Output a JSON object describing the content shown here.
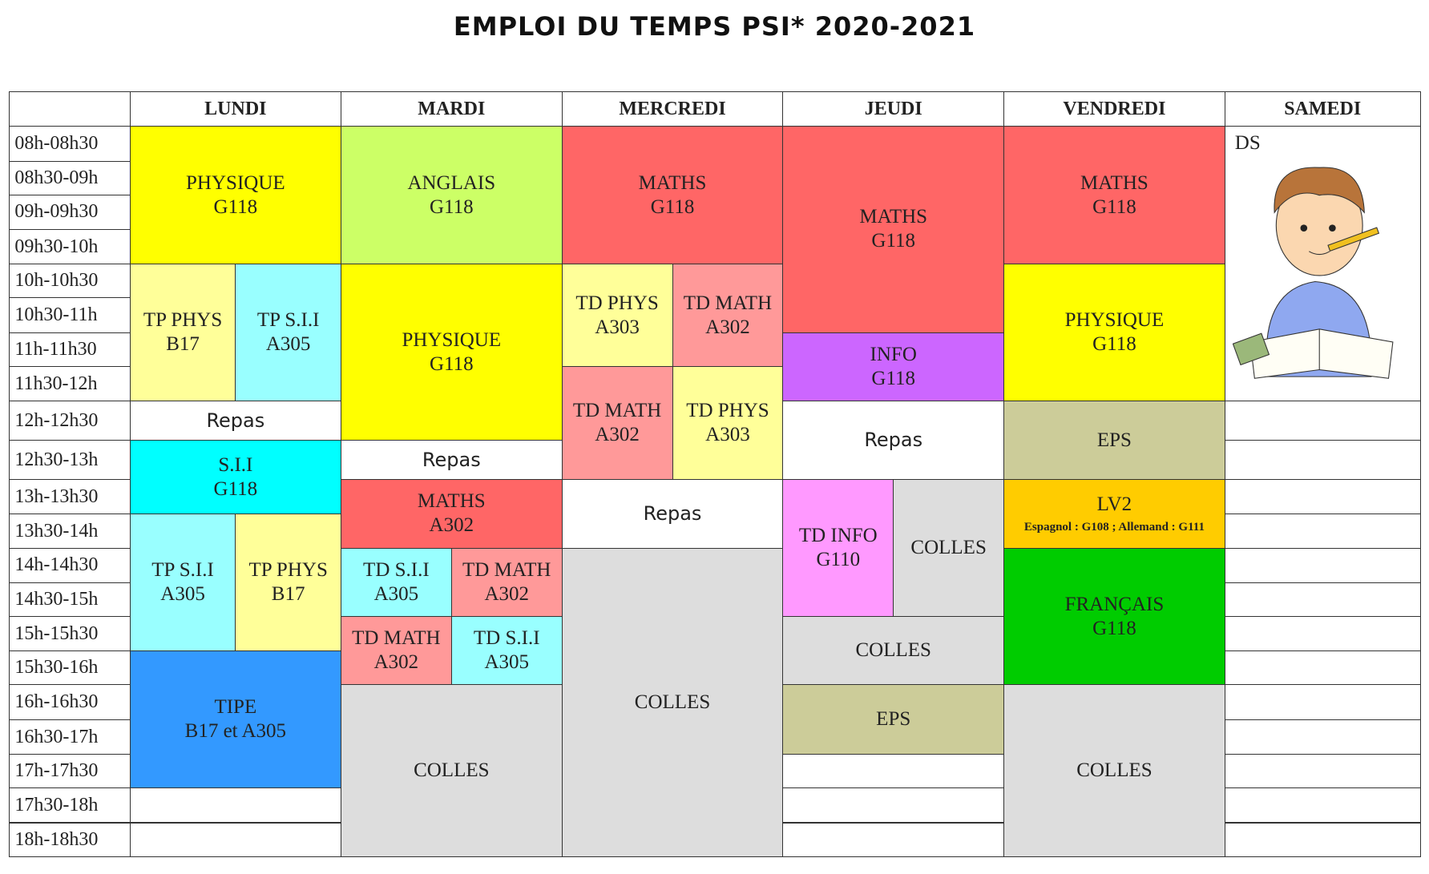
{
  "title": "EMPLOI DU TEMPS PSI* 2020-2021",
  "times": [
    "08h-08h30",
    "08h30-09h",
    "09h-09h30",
    "09h30-10h",
    "10h-10h30",
    "10h30-11h",
    "11h-11h30",
    "11h30-12h",
    "12h-12h30",
    "12h30-13h",
    "13h-13h30",
    "13h30-14h",
    "14h-14h30",
    "14h30-15h",
    "15h-15h30",
    "15h30-16h",
    "16h-16h30",
    "16h30-17h",
    "17h-17h30",
    "17h30-18h",
    "18h-18h30"
  ],
  "columns": [
    {
      "day": "LUNDI",
      "blocks": [
        {
          "lines": [
            "PHYSIQUE",
            "G118"
          ]
        },
        {
          "lines": [
            "TP PHYS",
            "B17"
          ]
        },
        {
          "lines": [
            "TP S.I.I",
            "A305"
          ]
        },
        {
          "lines": [
            "Repas"
          ]
        },
        {
          "lines": [
            "S.I.I",
            "G118"
          ]
        },
        {
          "lines": [
            "TP S.I.I",
            "A305"
          ]
        },
        {
          "lines": [
            "TP PHYS",
            "B17"
          ]
        },
        {
          "lines": [
            "TIPE",
            "B17 et A305"
          ]
        }
      ]
    },
    {
      "day": "MARDI",
      "blocks": [
        {
          "lines": [
            "ANGLAIS",
            "G118"
          ]
        },
        {
          "lines": [
            "PHYSIQUE",
            "G118"
          ]
        },
        {
          "lines": [
            "Repas"
          ]
        },
        {
          "lines": [
            "MATHS",
            "A302"
          ]
        },
        {
          "lines": [
            "TD S.I.I",
            "A305"
          ]
        },
        {
          "lines": [
            "TD MATH",
            "A302"
          ]
        },
        {
          "lines": [
            "TD MATH",
            "A302"
          ]
        },
        {
          "lines": [
            "TD S.I.I",
            "A305"
          ]
        },
        {
          "lines": [
            "COLLES"
          ]
        }
      ]
    },
    {
      "day": "MERCREDI",
      "blocks": [
        {
          "lines": [
            "MATHS",
            "G118"
          ]
        },
        {
          "lines": [
            "TD PHYS",
            "A303"
          ]
        },
        {
          "lines": [
            "TD MATH",
            "A302"
          ]
        },
        {
          "lines": [
            "TD MATH",
            "A302"
          ]
        },
        {
          "lines": [
            "TD PHYS",
            "A303"
          ]
        },
        {
          "lines": [
            "Repas"
          ]
        },
        {
          "lines": [
            "COLLES"
          ]
        }
      ]
    },
    {
      "day": "JEUDI",
      "blocks": [
        {
          "lines": [
            "MATHS",
            "G118"
          ]
        },
        {
          "lines": [
            "INFO",
            "G118"
          ]
        },
        {
          "lines": [
            "Repas"
          ]
        },
        {
          "lines": [
            "TD INFO",
            "G110"
          ]
        },
        {
          "lines": [
            "COLLES"
          ]
        },
        {
          "lines": [
            "COLLES"
          ]
        },
        {
          "lines": [
            "EPS"
          ]
        }
      ]
    },
    {
      "day": "VENDREDI",
      "blocks": [
        {
          "lines": [
            "MATHS",
            "G118"
          ]
        },
        {
          "lines": [
            "PHYSIQUE",
            "G118"
          ]
        },
        {
          "lines": [
            "EPS"
          ]
        },
        {
          "lines": [
            "LV2",
            "Espagnol : G108 ; Allemand : G111"
          ]
        },
        {
          "lines": [
            "FRANÇAIS",
            "G118"
          ]
        },
        {
          "lines": [
            "COLLES"
          ]
        }
      ]
    },
    {
      "day": "SAMEDI",
      "blocks": [
        {
          "lines": [
            "DS"
          ]
        }
      ]
    }
  ]
}
